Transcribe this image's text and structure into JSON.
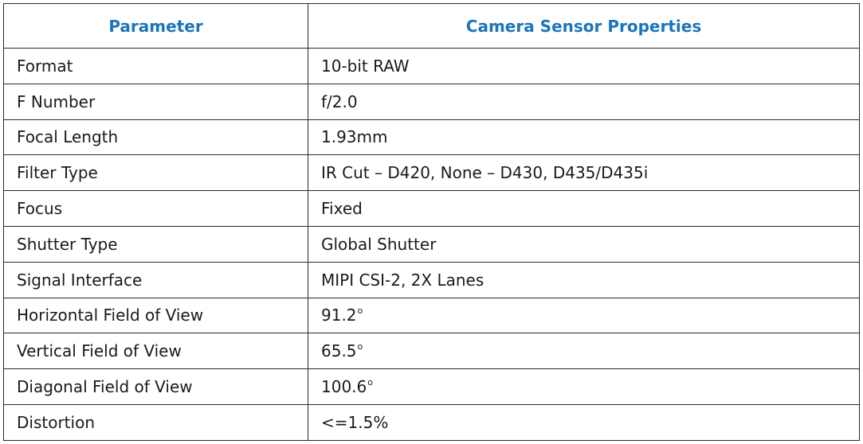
{
  "table": {
    "headers": [
      "Parameter",
      "Camera Sensor Properties"
    ],
    "rows": [
      {
        "parameter": "Format",
        "value": "10-bit RAW"
      },
      {
        "parameter": "F Number",
        "value": "f/2.0"
      },
      {
        "parameter": "Focal Length",
        "value": "1.93mm"
      },
      {
        "parameter": "Filter Type",
        "value": "IR Cut – D420, None – D430, D435/D435i"
      },
      {
        "parameter": "Focus",
        "value": "Fixed"
      },
      {
        "parameter": "Shutter Type",
        "value": "Global Shutter"
      },
      {
        "parameter": "Signal Interface",
        "value": "MIPI CSI-2, 2X Lanes"
      },
      {
        "parameter": "Horizontal Field of View",
        "value": "91.2",
        "unit": "o"
      },
      {
        "parameter": "Vertical Field of View",
        "value": "65.5",
        "unit": "o"
      },
      {
        "parameter": "Diagonal Field of View",
        "value": "100.6",
        "unit": "o"
      },
      {
        "parameter": "Distortion",
        "value": "<=1.5%"
      }
    ]
  },
  "colors": {
    "header_text": "#1b75bc",
    "border": "#2a2a2a",
    "body_text": "#1a1a1a"
  }
}
